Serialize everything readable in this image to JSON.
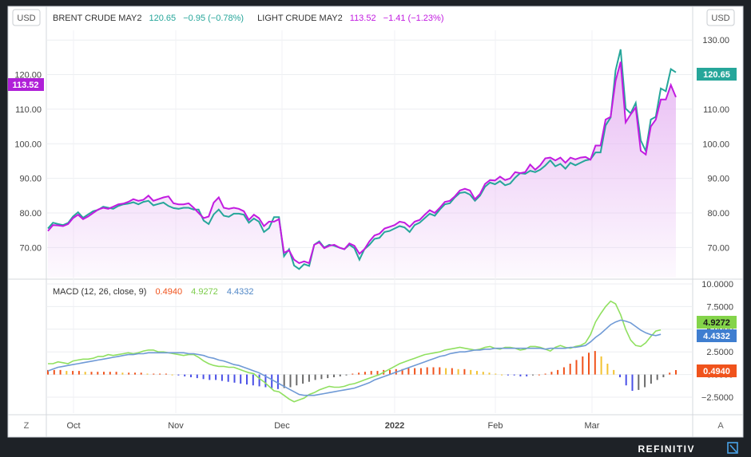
{
  "left_scale_label": "USD",
  "right_scale_label": "USD",
  "legend": {
    "brent": {
      "name": "BRENT CRUDE MAY2",
      "value": "120.65",
      "change": "−0.95 (−0.78%)",
      "color": "#26a69a"
    },
    "light": {
      "name": "LIGHT CRUDE MAY2",
      "value": "113.52",
      "change": "−1.41 (−1.23%)",
      "color": "#c21be0"
    }
  },
  "macd_legend": {
    "label": "MACD (12, 26, close, 9)",
    "hist": "0.4940",
    "macd": "4.9272",
    "signal": "4.4332"
  },
  "macd_colors": {
    "hist_pos": "#f0531c",
    "hist_neg": "#4a50e6",
    "macd": "#90e060",
    "signal": "#6f9ad6"
  },
  "left_badge": "113.52",
  "right_badges": {
    "brent": "120.65",
    "macd": "4.9272",
    "signal": "4.4332",
    "hist": "0.4940"
  },
  "corner_left": "Z",
  "corner_right": "A",
  "brand": "REFINITIV",
  "chart_data": [
    {
      "type": "line",
      "title": "",
      "x_tick_labels": [
        "Oct",
        "Nov",
        "Dec",
        "2022",
        "Feb",
        "Mar"
      ],
      "left_axis_ticks": [
        "120.00",
        "110.00",
        "100.00",
        "90.00",
        "80.00",
        "70.00"
      ],
      "right_axis_ticks": [
        "130.00",
        "120.00",
        "110.00",
        "100.00",
        "90.00",
        "80.00",
        "70.00"
      ],
      "left_ylim": [
        63.4,
        128.2
      ],
      "right_ylim": [
        63.4,
        128.2
      ],
      "series": [
        {
          "name": "BRENT CRUDE MAY2",
          "axis": "right",
          "color": "#26a69a",
          "values": [
            75.5,
            77.2,
            76.8,
            76.5,
            77.1,
            79,
            80.2,
            78.6,
            79.6,
            80.5,
            80.9,
            81.8,
            81.5,
            81.2,
            82,
            82.5,
            82.7,
            83.1,
            82.5,
            83.2,
            83.5,
            82.2,
            82.6,
            83,
            82,
            81.4,
            81.2,
            81.5,
            81.5,
            81,
            81,
            77.8,
            76.8,
            79.6,
            81,
            79.2,
            78.9,
            79.8,
            79.8,
            79.5,
            77.2,
            78.4,
            77.5,
            74.5,
            75.6,
            78.8,
            78.8,
            67.5,
            69.5,
            64.8,
            63.8,
            65.2,
            64.7,
            70.8,
            71.8,
            70,
            70.8,
            70.5,
            70,
            69.5,
            70.8,
            69.8,
            66.5,
            69.5,
            70.8,
            72.5,
            72.8,
            74.5,
            74.8,
            75.5,
            76.2,
            75.8,
            74.5,
            76.5,
            77.2,
            78.5,
            79.8,
            79.2,
            81,
            82.5,
            82.8,
            84.5,
            85.8,
            86,
            85.3,
            83.5,
            85,
            87.6,
            88.8,
            88.3,
            89.2,
            88,
            88.5,
            90.2,
            91.5,
            91.3,
            92.2,
            91.8,
            92.5,
            93.7,
            95.2,
            93.5,
            94.2,
            92.8,
            94.5,
            93.8,
            94.5,
            95.2,
            95.5,
            97.5,
            97.5,
            105.3,
            107.6,
            121.2,
            127.3,
            110.2,
            108.8,
            111.8,
            101,
            97.9,
            107,
            107.8,
            116,
            115.2,
            121.6,
            120.65
          ]
        },
        {
          "name": "LIGHT CRUDE MAY2",
          "axis": "left",
          "color": "#c21be0",
          "values": [
            74.8,
            76.5,
            76.4,
            76.2,
            76.8,
            78.5,
            79.5,
            78.2,
            79,
            80,
            81,
            81.5,
            81.2,
            81.8,
            82.5,
            82.7,
            83.2,
            84,
            83.5,
            83.8,
            85,
            83.5,
            84,
            84.5,
            84.8,
            82.8,
            82.5,
            82.5,
            82.8,
            81.5,
            80,
            78.5,
            79,
            83,
            84.5,
            81.5,
            81.2,
            81.5,
            81.2,
            80.5,
            78,
            79.5,
            78.5,
            76.2,
            77.5,
            77.5,
            78.2,
            68.5,
            69.2,
            66.5,
            65.5,
            66,
            65.5,
            70.8,
            71.5,
            69.8,
            70.5,
            70.8,
            70,
            69.5,
            71.2,
            70.5,
            68.2,
            69.5,
            71.8,
            73.5,
            74,
            75.5,
            76,
            76.5,
            77.5,
            77.2,
            76,
            77.5,
            78,
            79.5,
            80.8,
            80,
            81.5,
            83.2,
            83.5,
            84.8,
            86.5,
            87,
            86.5,
            84,
            85.5,
            88.4,
            89.5,
            89.4,
            90.5,
            89.5,
            90,
            91.8,
            91.5,
            91.8,
            94,
            92.5,
            93.8,
            95.8,
            96,
            95.2,
            96,
            94.5,
            96,
            95.5,
            96,
            96.2,
            95.4,
            99.5,
            99.5,
            107,
            107.8,
            118.2,
            123.7,
            106.2,
            108.5,
            110.5,
            98,
            96.9,
            105,
            107,
            112.8,
            112.8,
            117,
            113.52
          ]
        }
      ]
    },
    {
      "type": "line",
      "title": "MACD (12, 26, close, 9)",
      "right_axis_ticks": [
        "10.0000",
        "7.5000",
        "5.0000",
        "2.5000",
        "0.0000",
        "−2.5000"
      ],
      "ylim": [
        -3.5,
        10.0
      ],
      "series": [
        {
          "name": "MACD",
          "color": "#90e060",
          "values": [
            1.2,
            1.2,
            1.4,
            1.3,
            1.2,
            1.5,
            1.6,
            1.7,
            1.7,
            1.8,
            2,
            2,
            2.2,
            2.1,
            2.2,
            2.3,
            2.4,
            2.3,
            2.4,
            2.6,
            2.7,
            2.7,
            2.5,
            2.5,
            2.4,
            2.3,
            2.2,
            2.1,
            2.2,
            2.2,
            1.9,
            1.5,
            1.2,
            1.0,
            0.9,
            0.9,
            0.8,
            0.8,
            0.6,
            0.4,
            0.2,
            0.1,
            -0.4,
            -0.8,
            -1.3,
            -1.8,
            -1.9,
            -2.3,
            -2.7,
            -3.0,
            -2.8,
            -2.6,
            -2.2,
            -2.0,
            -1.7,
            -1.5,
            -1.3,
            -1.4,
            -1.4,
            -1.3,
            -1.1,
            -1.0,
            -0.8,
            -0.6,
            -0.4,
            -0.2,
            0,
            0.3,
            0.6,
            0.9,
            1.2,
            1.4,
            1.6,
            1.8,
            2,
            2.2,
            2.3,
            2.4,
            2.5,
            2.7,
            2.8,
            2.9,
            3.0,
            2.9,
            2.8,
            2.7,
            2.8,
            3.0,
            3.1,
            2.9,
            2.8,
            3.0,
            3.0,
            2.9,
            2.7,
            2.8,
            3.1,
            3.1,
            3.0,
            2.8,
            2.6,
            3.0,
            3.2,
            3.0,
            2.9,
            3.1,
            3.2,
            3.5,
            4.4,
            5.8,
            6.7,
            7.5,
            8.1,
            7.8,
            6.6,
            5.0,
            3.8,
            3.2,
            3.1,
            3.5,
            4.2,
            4.8,
            4.9272
          ]
        },
        {
          "name": "Signal",
          "color": "#6f9ad6",
          "values": [
            0.4,
            0.6,
            0.8,
            0.9,
            1.0,
            1.1,
            1.2,
            1.3,
            1.4,
            1.5,
            1.6,
            1.7,
            1.8,
            1.9,
            2.0,
            2.1,
            2.2,
            2.2,
            2.3,
            2.3,
            2.4,
            2.4,
            2.4,
            2.4,
            2.4,
            2.4,
            2.4,
            2.4,
            2.3,
            2.3,
            2.2,
            2.1,
            1.9,
            1.8,
            1.6,
            1.5,
            1.3,
            1.1,
            1.0,
            0.8,
            0.6,
            0.4,
            0.2,
            -0.1,
            -0.4,
            -0.7,
            -1.0,
            -1.3,
            -1.6,
            -1.9,
            -2.2,
            -2.3,
            -2.3,
            -2.3,
            -2.2,
            -2.1,
            -2.0,
            -1.9,
            -1.8,
            -1.7,
            -1.6,
            -1.5,
            -1.3,
            -1.1,
            -0.9,
            -0.6,
            -0.4,
            -0.2,
            0,
            0.2,
            0.4,
            0.6,
            0.8,
            1.0,
            1.2,
            1.4,
            1.6,
            1.8,
            2.0,
            2.1,
            2.3,
            2.4,
            2.5,
            2.5,
            2.6,
            2.7,
            2.7,
            2.8,
            2.8,
            2.9,
            2.9,
            2.9,
            2.9,
            2.9,
            2.9,
            2.9,
            2.9,
            2.9,
            2.9,
            2.8,
            2.9,
            2.9,
            2.9,
            2.9,
            3.0,
            3.0,
            3.1,
            3.2,
            3.6,
            4.1,
            4.5,
            5.0,
            5.5,
            5.8,
            6.0,
            5.9,
            5.7,
            5.3,
            4.9,
            4.6,
            4.4,
            4.3,
            4.4332
          ]
        }
      ],
      "histogram": {
        "name": "Histogram",
        "values": [
          0.5,
          0.5,
          0.5,
          0.4,
          0.4,
          0.4,
          0.3,
          0.3,
          0.3,
          0.3,
          0.3,
          0.3,
          0.2,
          0.2,
          0.2,
          0.2,
          0.1,
          0.1,
          0.1,
          0.1,
          0,
          -0.1,
          -0.2,
          -0.3,
          -0.4,
          -0.5,
          -0.6,
          -0.6,
          -0.7,
          -0.8,
          -0.9,
          -1.0,
          -1.1,
          -1.2,
          -1.3,
          -1.4,
          -1.5,
          -1.6,
          -1.5,
          -1.4,
          -1.2,
          -1.0,
          -0.8,
          -0.6,
          -0.5,
          -0.4,
          -0.3,
          -0.2,
          -0.1,
          0.1,
          0.2,
          0.3,
          0.4,
          0.4,
          0.5,
          0.5,
          0.6,
          0.6,
          0.7,
          0.7,
          0.7,
          0.8,
          0.8,
          0.8,
          0.7,
          0.7,
          0.6,
          0.6,
          0.5,
          0.4,
          0.3,
          0.2,
          0.1,
          0,
          -0.1,
          -0.1,
          -0.2,
          -0.2,
          -0.1,
          0,
          0.1,
          0.3,
          0.5,
          0.8,
          1.2,
          1.6,
          2.0,
          2.4,
          2.6,
          2.0,
          1.2,
          0.5,
          -0.3,
          -1.2,
          -1.8,
          -1.7,
          -1.4,
          -1.0,
          -0.6,
          -0.3,
          0.2,
          0.494
        ]
      }
    }
  ]
}
